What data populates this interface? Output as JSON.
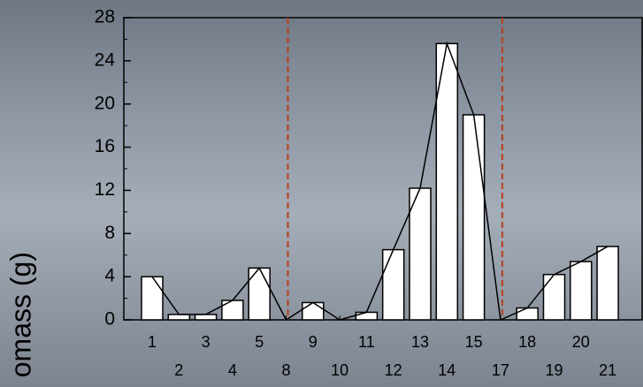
{
  "chart_data": {
    "type": "bar",
    "ylabel": "omass (g)",
    "categories": [
      "1",
      "2",
      "3",
      "4",
      "5",
      "8",
      "9",
      "10",
      "11",
      "12",
      "13",
      "14",
      "15",
      "17",
      "18",
      "19",
      "20",
      "21"
    ],
    "values": [
      4.0,
      0.5,
      0.5,
      1.8,
      4.8,
      0,
      1.6,
      0,
      0.7,
      6.5,
      12.2,
      25.6,
      19.0,
      0,
      1.1,
      4.2,
      5.4,
      6.8
    ],
    "color": "#ffffff",
    "line_color": "#000000",
    "divider_color": "#b5401a",
    "ylim": [
      0,
      28
    ],
    "yticks": [
      0,
      4,
      8,
      12,
      16,
      20,
      24,
      28
    ]
  }
}
